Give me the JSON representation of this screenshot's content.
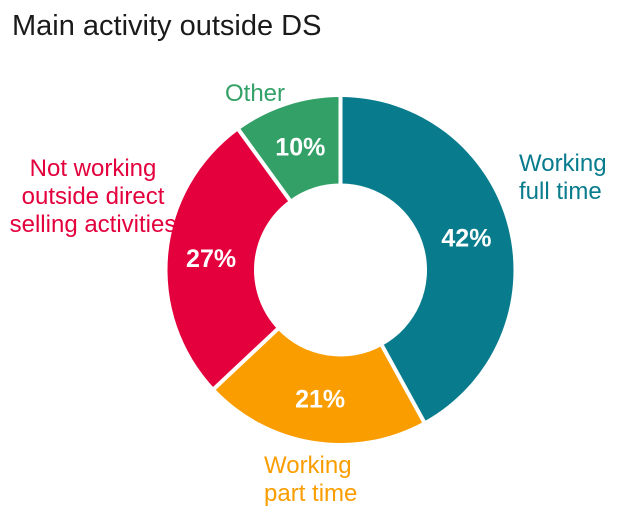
{
  "chart_data": {
    "type": "donut",
    "title": "Main activity outside DS",
    "title_color": "#1a1a1a",
    "start_angle": "top",
    "direction": "clockwise",
    "inner_radius_ratio": 0.5,
    "separator_color": "#ffffff",
    "value_label_color": "#ffffff",
    "segments": [
      {
        "name": "working-full-time",
        "label": "Working\nfull time",
        "value": 42,
        "value_label": "42%",
        "color": "#087C8D"
      },
      {
        "name": "working-part-time",
        "label": "Working\npart time",
        "value": 21,
        "value_label": "21%",
        "color": "#FA9D00"
      },
      {
        "name": "not-working-outside-direct-selling-activities",
        "label": "Not working\noutside direct\nselling activities",
        "value": 27,
        "value_label": "27%",
        "color": "#E3003C"
      },
      {
        "name": "other",
        "label": "Other",
        "value": 10,
        "value_label": "10%",
        "color": "#33A167"
      }
    ]
  }
}
